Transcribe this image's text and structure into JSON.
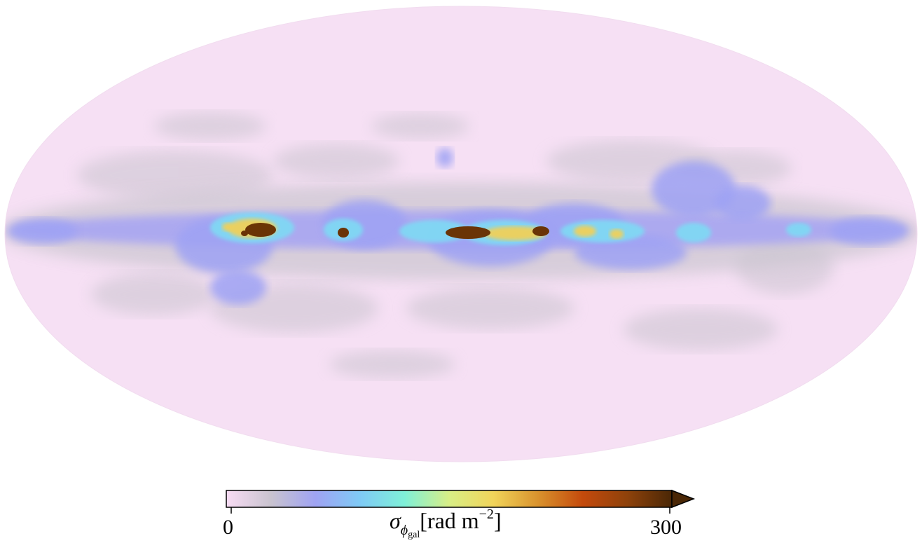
{
  "map": {
    "projection": "mollweide",
    "quantity_symbol": "σ",
    "quantity_subscript": "ϕ",
    "quantity_subsubscript": "gal",
    "unit_prefix": "[rad m",
    "unit_exponent": "−2",
    "unit_suffix": "]"
  },
  "colorbar": {
    "min": 0,
    "max": 300,
    "min_label": "0",
    "max_label": "300",
    "extend": "max",
    "colors": [
      "#f8dcf4",
      "#c9c3cf",
      "#9fa3f3",
      "#7fcaf5",
      "#7ff0d8",
      "#d8ee86",
      "#f1d45a",
      "#d9922d",
      "#c44a0c",
      "#8e420b",
      "#4a2706"
    ]
  }
}
